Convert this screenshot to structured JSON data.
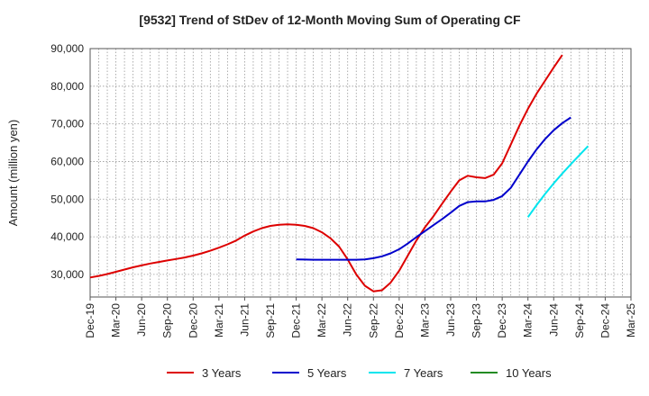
{
  "chart_data": {
    "type": "line",
    "title": "[9532]  Trend of StDev of 12-Month Moving Sum of Operating CF",
    "xlabel": "",
    "ylabel": "Amount (million yen)",
    "ylim": [
      24000,
      90000
    ],
    "yticks": [
      30000,
      40000,
      50000,
      60000,
      70000,
      80000,
      90000
    ],
    "ytick_labels": [
      "30,000",
      "40,000",
      "50,000",
      "60,000",
      "70,000",
      "80,000",
      "90,000"
    ],
    "x_start": "2019-12",
    "x_end": "2025-03",
    "xtick_labels": [
      "Dec-19",
      "Mar-20",
      "Jun-20",
      "Sep-20",
      "Dec-20",
      "Mar-21",
      "Jun-21",
      "Sep-21",
      "Dec-21",
      "Mar-22",
      "Jun-22",
      "Sep-22",
      "Dec-22",
      "Mar-23",
      "Jun-23",
      "Sep-23",
      "Dec-23",
      "Mar-24",
      "Jun-24",
      "Sep-24",
      "Dec-24",
      "Mar-25"
    ],
    "grid": true,
    "legend_position": "bottom",
    "series": [
      {
        "name": "3 Years",
        "color": "#dd0000",
        "points": [
          [
            "2019-12",
            29200
          ],
          [
            "2020-01",
            29600
          ],
          [
            "2020-02",
            30100
          ],
          [
            "2020-03",
            30700
          ],
          [
            "2020-04",
            31300
          ],
          [
            "2020-05",
            31900
          ],
          [
            "2020-06",
            32400
          ],
          [
            "2020-07",
            32900
          ],
          [
            "2020-08",
            33300
          ],
          [
            "2020-09",
            33700
          ],
          [
            "2020-10",
            34100
          ],
          [
            "2020-11",
            34500
          ],
          [
            "2020-12",
            35000
          ],
          [
            "2021-01",
            35600
          ],
          [
            "2021-02",
            36300
          ],
          [
            "2021-03",
            37100
          ],
          [
            "2021-04",
            38000
          ],
          [
            "2021-05",
            39000
          ],
          [
            "2021-06",
            40300
          ],
          [
            "2021-07",
            41400
          ],
          [
            "2021-08",
            42300
          ],
          [
            "2021-09",
            42900
          ],
          [
            "2021-10",
            43200
          ],
          [
            "2021-11",
            43300
          ],
          [
            "2021-12",
            43200
          ],
          [
            "2022-01",
            42900
          ],
          [
            "2022-02",
            42300
          ],
          [
            "2022-03",
            41200
          ],
          [
            "2022-04",
            39600
          ],
          [
            "2022-05",
            37400
          ],
          [
            "2022-06",
            34000
          ],
          [
            "2022-07",
            30000
          ],
          [
            "2022-08",
            27000
          ],
          [
            "2022-09",
            25500
          ],
          [
            "2022-10",
            25800
          ],
          [
            "2022-11",
            27800
          ],
          [
            "2022-12",
            31000
          ],
          [
            "2023-01",
            35000
          ],
          [
            "2023-02",
            39000
          ],
          [
            "2023-03",
            42500
          ],
          [
            "2023-04",
            45500
          ],
          [
            "2023-05",
            48800
          ],
          [
            "2023-06",
            52000
          ],
          [
            "2023-07",
            55000
          ],
          [
            "2023-08",
            56200
          ],
          [
            "2023-09",
            55800
          ],
          [
            "2023-10",
            55600
          ],
          [
            "2023-11",
            56500
          ],
          [
            "2023-12",
            59500
          ],
          [
            "2024-01",
            64500
          ],
          [
            "2024-02",
            69500
          ],
          [
            "2024-03",
            74000
          ],
          [
            "2024-04",
            78000
          ],
          [
            "2024-05",
            81500
          ],
          [
            "2024-06",
            85000
          ],
          [
            "2024-07",
            88300
          ]
        ]
      },
      {
        "name": "5 Years",
        "color": "#0000cc",
        "points": [
          [
            "2021-12",
            34000
          ],
          [
            "2022-01",
            33950
          ],
          [
            "2022-02",
            33900
          ],
          [
            "2022-03",
            33900
          ],
          [
            "2022-04",
            33900
          ],
          [
            "2022-05",
            33900
          ],
          [
            "2022-06",
            33900
          ],
          [
            "2022-07",
            33900
          ],
          [
            "2022-08",
            34000
          ],
          [
            "2022-09",
            34300
          ],
          [
            "2022-10",
            34800
          ],
          [
            "2022-11",
            35600
          ],
          [
            "2022-12",
            36700
          ],
          [
            "2023-01",
            38200
          ],
          [
            "2023-02",
            39900
          ],
          [
            "2023-03",
            41500
          ],
          [
            "2023-04",
            43100
          ],
          [
            "2023-05",
            44700
          ],
          [
            "2023-06",
            46400
          ],
          [
            "2023-07",
            48200
          ],
          [
            "2023-08",
            49200
          ],
          [
            "2023-09",
            49400
          ],
          [
            "2023-10",
            49400
          ],
          [
            "2023-11",
            49800
          ],
          [
            "2023-12",
            50800
          ],
          [
            "2024-01",
            53000
          ],
          [
            "2024-02",
            56500
          ],
          [
            "2024-03",
            60000
          ],
          [
            "2024-04",
            63200
          ],
          [
            "2024-05",
            66000
          ],
          [
            "2024-06",
            68300
          ],
          [
            "2024-07",
            70200
          ],
          [
            "2024-08",
            71700
          ]
        ]
      },
      {
        "name": "7 Years",
        "color": "#00e5ee",
        "points": [
          [
            "2024-03",
            45200
          ],
          [
            "2024-04",
            48400
          ],
          [
            "2024-05",
            51400
          ],
          [
            "2024-06",
            54200
          ],
          [
            "2024-07",
            56800
          ],
          [
            "2024-08",
            59300
          ],
          [
            "2024-09",
            61700
          ],
          [
            "2024-10",
            64100
          ]
        ]
      },
      {
        "name": "10 Years",
        "color": "#228b22",
        "points": []
      }
    ]
  }
}
